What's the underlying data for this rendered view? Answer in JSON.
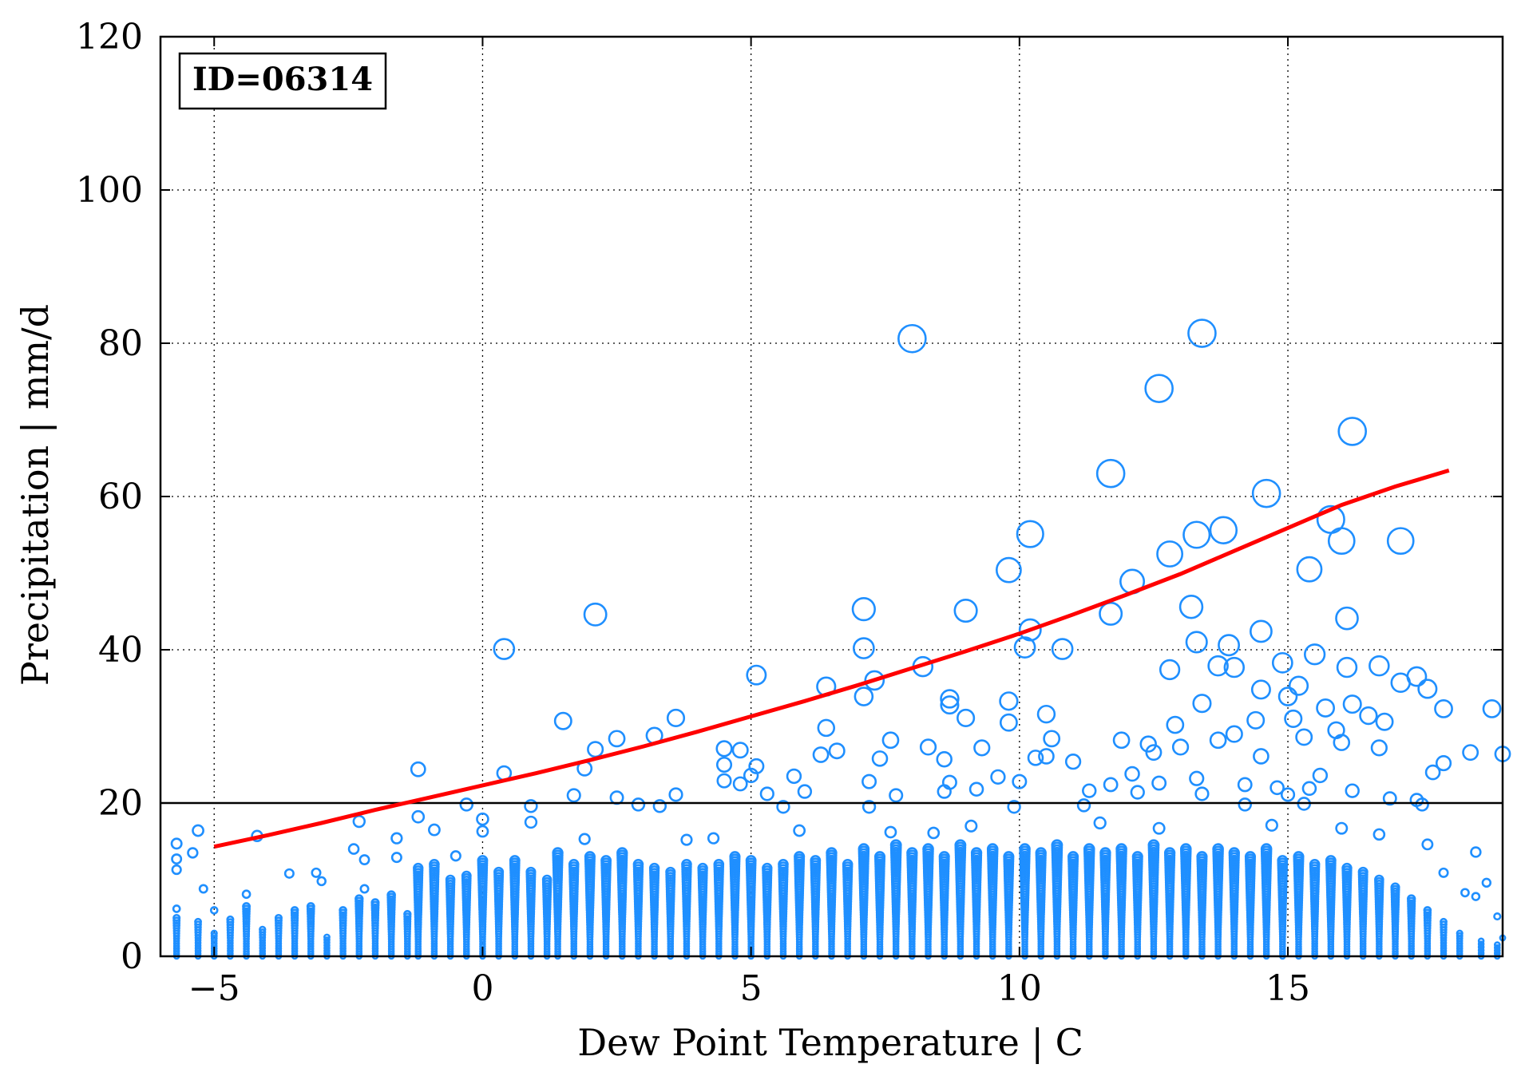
{
  "chart_data": {
    "type": "scatter",
    "annotation": "ID=06314",
    "xlabel": "Dew Point Temperature | C",
    "ylabel": "Precipitation | mm/d",
    "xlim": [
      -6,
      19
    ],
    "ylim": [
      0,
      120
    ],
    "xticks": [
      -5,
      0,
      5,
      10,
      15
    ],
    "xtick_labels": [
      "−5",
      "0",
      "5",
      "10",
      "15"
    ],
    "yticks": [
      0,
      20,
      40,
      60,
      80,
      100,
      120
    ],
    "ytick_labels": [
      "0",
      "20",
      "40",
      "60",
      "80",
      "100",
      "120"
    ],
    "grid": true,
    "threshold_line": 20,
    "marker_color": "#1f8fff",
    "fit_color": "#ff0000",
    "fit_curve": {
      "x": [
        -5,
        -4,
        -3,
        -2,
        -1,
        0,
        1,
        2,
        3,
        4,
        5,
        6,
        7,
        8,
        9,
        10,
        11,
        12,
        13,
        14,
        15,
        16,
        17,
        18
      ],
      "y": [
        14.3,
        15.8,
        17.4,
        19.1,
        20.7,
        22.3,
        23.9,
        25.6,
        27.4,
        29.3,
        31.3,
        33.3,
        35.4,
        37.6,
        39.8,
        42.1,
        44.6,
        47.2,
        49.9,
        52.9,
        55.9,
        58.9,
        61.3,
        63.4
      ]
    },
    "points": [
      {
        "x": 8.0,
        "y": 80.6
      },
      {
        "x": 13.4,
        "y": 81.3
      },
      {
        "x": 12.6,
        "y": 74.1
      },
      {
        "x": 16.2,
        "y": 68.5
      },
      {
        "x": 11.7,
        "y": 63.0
      },
      {
        "x": 14.6,
        "y": 60.4
      },
      {
        "x": 15.8,
        "y": 57.0
      },
      {
        "x": 16.0,
        "y": 54.2
      },
      {
        "x": 17.1,
        "y": 54.2
      },
      {
        "x": 10.2,
        "y": 55.1
      },
      {
        "x": 13.3,
        "y": 55.0
      },
      {
        "x": 13.8,
        "y": 55.6
      },
      {
        "x": 12.8,
        "y": 52.5
      },
      {
        "x": 9.8,
        "y": 50.4
      },
      {
        "x": 15.4,
        "y": 50.5
      },
      {
        "x": 12.1,
        "y": 48.9
      },
      {
        "x": 2.1,
        "y": 44.6
      },
      {
        "x": 7.1,
        "y": 45.3
      },
      {
        "x": 9.0,
        "y": 45.1
      },
      {
        "x": 11.7,
        "y": 44.7
      },
      {
        "x": 13.2,
        "y": 45.6
      },
      {
        "x": 16.1,
        "y": 44.1
      },
      {
        "x": 14.5,
        "y": 42.4
      },
      {
        "x": 10.2,
        "y": 42.6
      },
      {
        "x": 0.4,
        "y": 40.1
      },
      {
        "x": 7.1,
        "y": 40.2
      },
      {
        "x": 10.1,
        "y": 40.3
      },
      {
        "x": 10.8,
        "y": 40.1
      },
      {
        "x": 13.3,
        "y": 41.0
      },
      {
        "x": 13.9,
        "y": 40.6
      },
      {
        "x": 7.3,
        "y": 36.0
      },
      {
        "x": 8.2,
        "y": 37.8
      },
      {
        "x": 12.8,
        "y": 37.4
      },
      {
        "x": 13.7,
        "y": 37.9
      },
      {
        "x": 14.0,
        "y": 37.7
      },
      {
        "x": 14.9,
        "y": 38.3
      },
      {
        "x": 16.1,
        "y": 37.7
      },
      {
        "x": 16.7,
        "y": 37.9
      },
      {
        "x": 17.4,
        "y": 36.5
      },
      {
        "x": 17.1,
        "y": 35.7
      },
      {
        "x": 5.1,
        "y": 36.7
      },
      {
        "x": 6.4,
        "y": 35.2
      },
      {
        "x": 7.1,
        "y": 33.9
      },
      {
        "x": 8.7,
        "y": 33.6
      },
      {
        "x": 8.7,
        "y": 32.8
      },
      {
        "x": 9.8,
        "y": 33.3
      },
      {
        "x": 13.4,
        "y": 33.0
      },
      {
        "x": 14.5,
        "y": 34.8
      },
      {
        "x": 15.0,
        "y": 33.9
      },
      {
        "x": 15.2,
        "y": 35.3
      },
      {
        "x": 15.5,
        "y": 39.4
      },
      {
        "x": 16.2,
        "y": 32.9
      },
      {
        "x": 17.6,
        "y": 34.9
      },
      {
        "x": 18.8,
        "y": 32.3
      },
      {
        "x": 17.9,
        "y": 32.3
      },
      {
        "x": 1.5,
        "y": 30.7
      },
      {
        "x": 3.6,
        "y": 31.1
      },
      {
        "x": 9.0,
        "y": 31.1
      },
      {
        "x": 10.5,
        "y": 31.6
      },
      {
        "x": 9.8,
        "y": 30.5
      },
      {
        "x": 12.9,
        "y": 30.2
      },
      {
        "x": 14.4,
        "y": 30.8
      },
      {
        "x": 15.1,
        "y": 31.0
      },
      {
        "x": 15.7,
        "y": 32.4
      },
      {
        "x": 16.5,
        "y": 31.4
      },
      {
        "x": 16.8,
        "y": 30.6
      },
      {
        "x": 6.4,
        "y": 29.8
      },
      {
        "x": 3.2,
        "y": 28.8
      },
      {
        "x": 2.5,
        "y": 28.4
      },
      {
        "x": 10.6,
        "y": 28.4
      },
      {
        "x": 11.9,
        "y": 28.2
      },
      {
        "x": 13.7,
        "y": 28.2
      },
      {
        "x": 14.0,
        "y": 29.0
      },
      {
        "x": 15.9,
        "y": 29.5
      },
      {
        "x": 2.1,
        "y": 27.0
      },
      {
        "x": 4.5,
        "y": 27.1
      },
      {
        "x": 4.8,
        "y": 26.9
      },
      {
        "x": 6.3,
        "y": 26.3
      },
      {
        "x": 6.6,
        "y": 26.8
      },
      {
        "x": 7.6,
        "y": 28.2
      },
      {
        "x": 8.3,
        "y": 27.3
      },
      {
        "x": 9.3,
        "y": 27.2
      },
      {
        "x": 12.4,
        "y": 27.7
      },
      {
        "x": 12.5,
        "y": 26.6
      },
      {
        "x": 13.0,
        "y": 27.3
      },
      {
        "x": 14.5,
        "y": 26.1
      },
      {
        "x": 16.0,
        "y": 27.9
      },
      {
        "x": 16.7,
        "y": 27.2
      },
      {
        "x": 15.3,
        "y": 28.6
      },
      {
        "x": 18.4,
        "y": 26.6
      },
      {
        "x": 19.0,
        "y": 26.4
      },
      {
        "x": 0.4,
        "y": 23.9
      },
      {
        "x": 1.9,
        "y": 24.5
      },
      {
        "x": -1.2,
        "y": 24.4
      },
      {
        "x": 4.5,
        "y": 25.0
      },
      {
        "x": 5.1,
        "y": 24.8
      },
      {
        "x": 7.4,
        "y": 25.8
      },
      {
        "x": 8.6,
        "y": 25.7
      },
      {
        "x": 10.3,
        "y": 25.9
      },
      {
        "x": 10.5,
        "y": 26.1
      },
      {
        "x": 11.0,
        "y": 25.4
      },
      {
        "x": 12.1,
        "y": 23.8
      },
      {
        "x": 13.3,
        "y": 23.2
      },
      {
        "x": 15.6,
        "y": 23.6
      },
      {
        "x": 17.7,
        "y": 24.0
      },
      {
        "x": 17.9,
        "y": 25.2
      },
      {
        "x": 4.5,
        "y": 22.9
      },
      {
        "x": 5.0,
        "y": 23.6
      },
      {
        "x": 5.8,
        "y": 23.5
      },
      {
        "x": 4.8,
        "y": 22.5
      },
      {
        "x": 7.2,
        "y": 22.8
      },
      {
        "x": 8.7,
        "y": 22.7
      },
      {
        "x": 9.6,
        "y": 23.4
      },
      {
        "x": 10.0,
        "y": 22.8
      },
      {
        "x": 11.7,
        "y": 22.4
      },
      {
        "x": 12.6,
        "y": 22.6
      },
      {
        "x": 14.2,
        "y": 22.4
      },
      {
        "x": 14.8,
        "y": 22.0
      },
      {
        "x": 15.4,
        "y": 21.9
      },
      {
        "x": 16.2,
        "y": 21.6
      },
      {
        "x": 17.4,
        "y": 20.4
      },
      {
        "x": 16.9,
        "y": 20.6
      },
      {
        "x": 0.0,
        "y": 17.9
      },
      {
        "x": 1.7,
        "y": 21.0
      },
      {
        "x": 2.5,
        "y": 20.7
      },
      {
        "x": 3.6,
        "y": 21.1
      },
      {
        "x": 5.3,
        "y": 21.2
      },
      {
        "x": 6.0,
        "y": 21.5
      },
      {
        "x": 7.7,
        "y": 21.0
      },
      {
        "x": 8.6,
        "y": 21.5
      },
      {
        "x": 9.2,
        "y": 21.8
      },
      {
        "x": 11.3,
        "y": 21.6
      },
      {
        "x": 12.2,
        "y": 21.4
      },
      {
        "x": 13.4,
        "y": 21.2
      },
      {
        "x": 15.0,
        "y": 21.1
      },
      {
        "x": 17.5,
        "y": 19.8
      },
      {
        "x": -0.3,
        "y": 19.8
      },
      {
        "x": 0.9,
        "y": 19.6
      },
      {
        "x": 2.9,
        "y": 19.8
      },
      {
        "x": 3.3,
        "y": 19.6
      },
      {
        "x": 5.6,
        "y": 19.5
      },
      {
        "x": 7.2,
        "y": 19.5
      },
      {
        "x": 9.9,
        "y": 19.5
      },
      {
        "x": 11.2,
        "y": 19.7
      },
      {
        "x": 14.2,
        "y": 19.8
      },
      {
        "x": 15.3,
        "y": 19.9
      },
      {
        "x": -2.3,
        "y": 17.6
      },
      {
        "x": -1.2,
        "y": 18.2
      },
      {
        "x": 0.0,
        "y": 16.3
      },
      {
        "x": -5.3,
        "y": 16.4
      },
      {
        "x": -4.2,
        "y": 15.7
      },
      {
        "x": -5.7,
        "y": 14.7
      },
      {
        "x": -0.9,
        "y": 16.5
      },
      {
        "x": 0.9,
        "y": 17.5
      },
      {
        "x": 1.9,
        "y": 15.3
      },
      {
        "x": 3.8,
        "y": 15.2
      },
      {
        "x": 4.3,
        "y": 15.4
      },
      {
        "x": 5.9,
        "y": 16.4
      },
      {
        "x": 7.6,
        "y": 16.2
      },
      {
        "x": 8.4,
        "y": 16.1
      },
      {
        "x": 9.1,
        "y": 17.0
      },
      {
        "x": 11.5,
        "y": 17.4
      },
      {
        "x": 12.6,
        "y": 16.7
      },
      {
        "x": 14.7,
        "y": 17.1
      },
      {
        "x": 16.0,
        "y": 16.7
      },
      {
        "x": 16.7,
        "y": 15.9
      },
      {
        "x": 17.6,
        "y": 14.6
      },
      {
        "x": 18.5,
        "y": 13.6
      },
      {
        "x": -5.7,
        "y": 12.7
      },
      {
        "x": -5.7,
        "y": 11.3
      },
      {
        "x": -5.4,
        "y": 13.5
      },
      {
        "x": -2.4,
        "y": 14.0
      },
      {
        "x": -2.2,
        "y": 12.6
      },
      {
        "x": -1.6,
        "y": 15.4
      },
      {
        "x": -1.6,
        "y": 12.9
      },
      {
        "x": -0.5,
        "y": 13.1
      },
      {
        "x": -3.6,
        "y": 10.8
      },
      {
        "x": -3.1,
        "y": 10.9
      },
      {
        "x": -4.4,
        "y": 8.1
      },
      {
        "x": -5.0,
        "y": 6.0
      },
      {
        "x": -5.2,
        "y": 8.8
      },
      {
        "x": -5.7,
        "y": 6.2
      },
      {
        "x": -3.0,
        "y": 9.8
      },
      {
        "x": -2.2,
        "y": 8.8
      },
      {
        "x": 17.9,
        "y": 10.9
      },
      {
        "x": 18.3,
        "y": 8.3
      },
      {
        "x": 18.7,
        "y": 9.6
      },
      {
        "x": 18.9,
        "y": 5.2
      },
      {
        "x": 18.5,
        "y": 7.8
      },
      {
        "x": 19.0,
        "y": 2.4
      }
    ],
    "point_columns": [
      {
        "x": -5.7,
        "ymax": 5.0
      },
      {
        "x": -5.3,
        "ymax": 4.5
      },
      {
        "x": -5.0,
        "ymax": 3.0
      },
      {
        "x": -4.7,
        "ymax": 4.8
      },
      {
        "x": -4.4,
        "ymax": 6.5
      },
      {
        "x": -4.1,
        "ymax": 3.5
      },
      {
        "x": -3.8,
        "ymax": 5.0
      },
      {
        "x": -3.5,
        "ymax": 6.0
      },
      {
        "x": -3.2,
        "ymax": 6.5
      },
      {
        "x": -2.9,
        "ymax": 2.5
      },
      {
        "x": -2.6,
        "ymax": 6.0
      },
      {
        "x": -2.3,
        "ymax": 7.5
      },
      {
        "x": -2.0,
        "ymax": 7.0
      },
      {
        "x": -1.7,
        "ymax": 8.0
      },
      {
        "x": -1.4,
        "ymax": 5.5
      },
      {
        "x": -1.2,
        "ymax": 11.5
      },
      {
        "x": -0.9,
        "ymax": 12.0
      },
      {
        "x": -0.6,
        "ymax": 10.0
      },
      {
        "x": -0.3,
        "ymax": 10.5
      },
      {
        "x": 0.0,
        "ymax": 12.5
      },
      {
        "x": 0.3,
        "ymax": 11.0
      },
      {
        "x": 0.6,
        "ymax": 12.5
      },
      {
        "x": 0.9,
        "ymax": 11.0
      },
      {
        "x": 1.2,
        "ymax": 10.0
      },
      {
        "x": 1.4,
        "ymax": 13.5
      },
      {
        "x": 1.7,
        "ymax": 12.0
      },
      {
        "x": 2.0,
        "ymax": 13.0
      },
      {
        "x": 2.3,
        "ymax": 12.5
      },
      {
        "x": 2.6,
        "ymax": 13.5
      },
      {
        "x": 2.9,
        "ymax": 12.0
      },
      {
        "x": 3.2,
        "ymax": 11.5
      },
      {
        "x": 3.5,
        "ymax": 11.0
      },
      {
        "x": 3.8,
        "ymax": 12.0
      },
      {
        "x": 4.1,
        "ymax": 11.5
      },
      {
        "x": 4.4,
        "ymax": 12.0
      },
      {
        "x": 4.7,
        "ymax": 13.0
      },
      {
        "x": 5.0,
        "ymax": 12.5
      },
      {
        "x": 5.3,
        "ymax": 11.5
      },
      {
        "x": 5.6,
        "ymax": 12.0
      },
      {
        "x": 5.9,
        "ymax": 13.0
      },
      {
        "x": 6.2,
        "ymax": 12.5
      },
      {
        "x": 6.5,
        "ymax": 13.5
      },
      {
        "x": 6.8,
        "ymax": 12.0
      },
      {
        "x": 7.1,
        "ymax": 14.0
      },
      {
        "x": 7.4,
        "ymax": 13.0
      },
      {
        "x": 7.7,
        "ymax": 14.5
      },
      {
        "x": 8.0,
        "ymax": 13.5
      },
      {
        "x": 8.3,
        "ymax": 14.0
      },
      {
        "x": 8.6,
        "ymax": 13.0
      },
      {
        "x": 8.9,
        "ymax": 14.5
      },
      {
        "x": 9.2,
        "ymax": 13.5
      },
      {
        "x": 9.5,
        "ymax": 14.0
      },
      {
        "x": 9.8,
        "ymax": 13.0
      },
      {
        "x": 10.1,
        "ymax": 14.0
      },
      {
        "x": 10.4,
        "ymax": 13.5
      },
      {
        "x": 10.7,
        "ymax": 14.5
      },
      {
        "x": 11.0,
        "ymax": 13.0
      },
      {
        "x": 11.3,
        "ymax": 14.0
      },
      {
        "x": 11.6,
        "ymax": 13.5
      },
      {
        "x": 11.9,
        "ymax": 14.0
      },
      {
        "x": 12.2,
        "ymax": 13.0
      },
      {
        "x": 12.5,
        "ymax": 14.5
      },
      {
        "x": 12.8,
        "ymax": 13.5
      },
      {
        "x": 13.1,
        "ymax": 14.0
      },
      {
        "x": 13.4,
        "ymax": 13.0
      },
      {
        "x": 13.7,
        "ymax": 14.0
      },
      {
        "x": 14.0,
        "ymax": 13.5
      },
      {
        "x": 14.3,
        "ymax": 13.0
      },
      {
        "x": 14.6,
        "ymax": 14.0
      },
      {
        "x": 14.9,
        "ymax": 12.5
      },
      {
        "x": 15.2,
        "ymax": 13.0
      },
      {
        "x": 15.5,
        "ymax": 12.0
      },
      {
        "x": 15.8,
        "ymax": 12.5
      },
      {
        "x": 16.1,
        "ymax": 11.5
      },
      {
        "x": 16.4,
        "ymax": 11.0
      },
      {
        "x": 16.7,
        "ymax": 10.0
      },
      {
        "x": 17.0,
        "ymax": 9.0
      },
      {
        "x": 17.3,
        "ymax": 7.5
      },
      {
        "x": 17.6,
        "ymax": 6.0
      },
      {
        "x": 17.9,
        "ymax": 4.5
      },
      {
        "x": 18.2,
        "ymax": 3.0
      },
      {
        "x": 18.6,
        "ymax": 2.0
      },
      {
        "x": 18.9,
        "ymax": 1.5
      }
    ]
  }
}
